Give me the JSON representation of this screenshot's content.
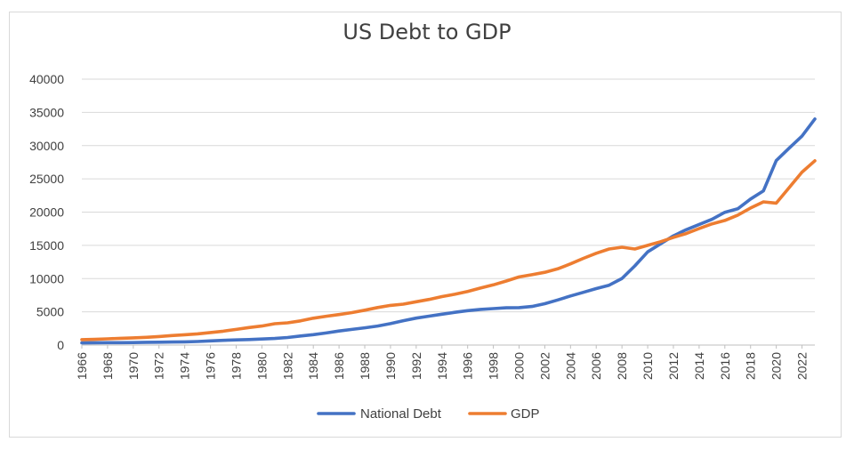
{
  "chart_data": {
    "type": "line",
    "title": "US Debt to GDP",
    "xlabel": "",
    "ylabel": "",
    "ylim": [
      0,
      40000
    ],
    "yticks": [
      0,
      5000,
      10000,
      15000,
      20000,
      25000,
      30000,
      35000,
      40000
    ],
    "xticks": [
      1966,
      1968,
      1970,
      1972,
      1974,
      1976,
      1978,
      1980,
      1982,
      1984,
      1986,
      1988,
      1990,
      1992,
      1994,
      1996,
      1998,
      2000,
      2002,
      2004,
      2006,
      2008,
      2010,
      2012,
      2014,
      2016,
      2018,
      2020,
      2022
    ],
    "grid": true,
    "legend_position": "bottom",
    "x": [
      1966,
      1967,
      1968,
      1969,
      1970,
      1971,
      1972,
      1973,
      1974,
      1975,
      1976,
      1977,
      1978,
      1979,
      1980,
      1981,
      1982,
      1983,
      1984,
      1985,
      1986,
      1987,
      1988,
      1989,
      1990,
      1991,
      1992,
      1993,
      1994,
      1995,
      1996,
      1997,
      1998,
      1999,
      2000,
      2001,
      2002,
      2003,
      2004,
      2005,
      2006,
      2007,
      2008,
      2009,
      2010,
      2011,
      2012,
      2013,
      2014,
      2015,
      2016,
      2017,
      2018,
      2019,
      2020,
      2021,
      2022,
      2023
    ],
    "series": [
      {
        "name": "National Debt",
        "color": "#4472c4",
        "values": [
          320,
          345,
          360,
          365,
          380,
          410,
          430,
          460,
          480,
          540,
          630,
          710,
          780,
          830,
          910,
          990,
          1140,
          1370,
          1570,
          1820,
          2120,
          2350,
          2600,
          2860,
          3230,
          3660,
          4060,
          4350,
          4640,
          4920,
          5180,
          5370,
          5480,
          5610,
          5630,
          5800,
          6220,
          6780,
          7390,
          7930,
          8500,
          9010,
          10020,
          11910,
          14020,
          15220,
          16430,
          17350,
          18140,
          18920,
          19970,
          20490,
          21970,
          23200,
          27750,
          29620,
          31420,
          34000
        ]
      },
      {
        "name": "GDP",
        "color": "#ed7d31",
        "values": [
          820,
          860,
          940,
          1020,
          1080,
          1170,
          1280,
          1430,
          1550,
          1690,
          1880,
          2090,
          2360,
          2630,
          2860,
          3210,
          3340,
          3640,
          4040,
          4340,
          4590,
          4880,
          5240,
          5640,
          5960,
          6160,
          6520,
          6860,
          7290,
          7640,
          8070,
          8580,
          9060,
          9630,
          10250,
          10580,
          10940,
          11460,
          12210,
          13040,
          13810,
          14450,
          14710,
          14450,
          14990,
          15540,
          16200,
          16780,
          17530,
          18240,
          18740,
          19540,
          20610,
          21540,
          21350,
          23680,
          26010,
          27720
        ]
      }
    ]
  }
}
